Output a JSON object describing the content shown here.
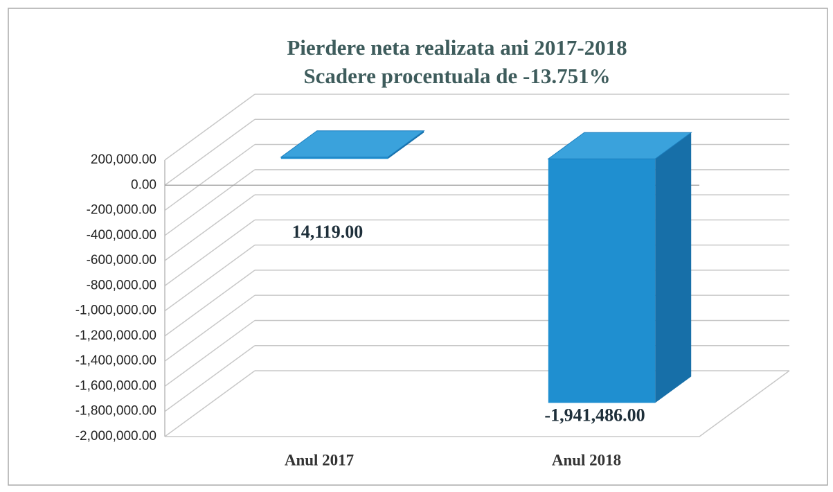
{
  "chart_data": {
    "type": "bar3d",
    "title": "Pierdere neta realizata ani 2017-2018",
    "subtitle": "Scadere procentuala de -13.751%",
    "categories": [
      "Anul 2017",
      "Anul 2018"
    ],
    "values": [
      14119,
      -1941486
    ],
    "value_labels": [
      "14,119.00",
      "-1,941,486.00"
    ],
    "color": "#1f8fd0",
    "ylim": [
      -2000000,
      200000
    ],
    "yticks": [
      {
        "value": 200000,
        "label": "200,000.00"
      },
      {
        "value": 0,
        "label": "0.00"
      },
      {
        "value": -200000,
        "label": "-200,000.00"
      },
      {
        "value": -400000,
        "label": "-400,000.00"
      },
      {
        "value": -600000,
        "label": "-600,000.00"
      },
      {
        "value": -800000,
        "label": "-800,000.00"
      },
      {
        "value": -1000000,
        "label": "-1,000,000.00"
      },
      {
        "value": -1200000,
        "label": "-1,200,000.00"
      },
      {
        "value": -1400000,
        "label": "-1,400,000.00"
      },
      {
        "value": -1600000,
        "label": "-1,600,000.00"
      },
      {
        "value": -1800000,
        "label": "-1,800,000.00"
      },
      {
        "value": -2000000,
        "label": "-2,000,000.00"
      }
    ],
    "grid": true
  }
}
